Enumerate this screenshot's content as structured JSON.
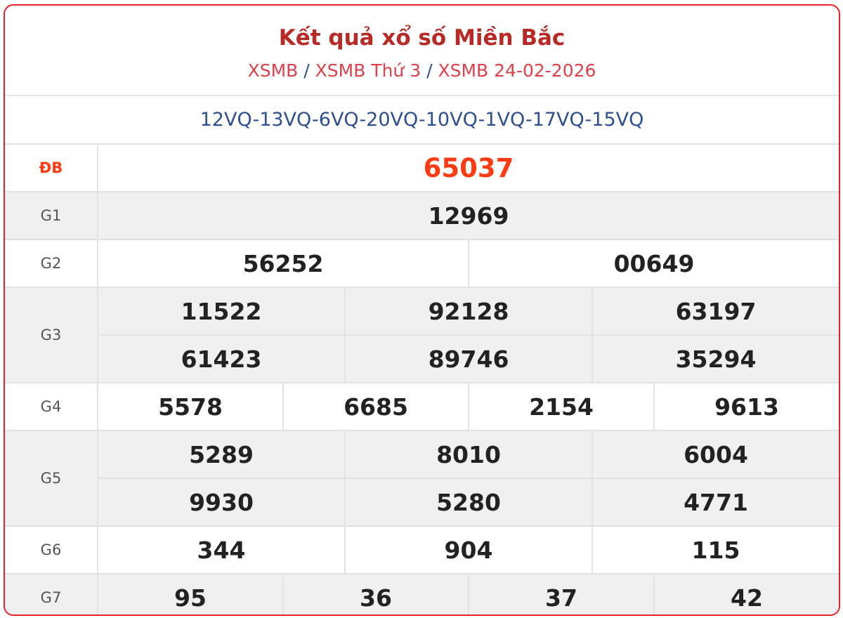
{
  "header": {
    "title": "Kết quả xổ số Miền Bắc",
    "breadcrumb": [
      "XSMB",
      "XSMB Thứ 3",
      "XSMB 24-02-2026"
    ],
    "separator": "/"
  },
  "codes": "12VQ-13VQ-6VQ-20VQ-10VQ-1VQ-17VQ-15VQ",
  "colors": {
    "border": "#e8202a",
    "title": "#b82a25",
    "special": "#ff3b14",
    "codes": "#2d4f8f"
  },
  "prizes": [
    {
      "label": "ĐB",
      "rows": [
        [
          "65037"
        ]
      ]
    },
    {
      "label": "G1",
      "rows": [
        [
          "12969"
        ]
      ]
    },
    {
      "label": "G2",
      "rows": [
        [
          "56252",
          "00649"
        ]
      ]
    },
    {
      "label": "G3",
      "rows": [
        [
          "11522",
          "92128",
          "63197"
        ],
        [
          "61423",
          "89746",
          "35294"
        ]
      ]
    },
    {
      "label": "G4",
      "rows": [
        [
          "5578",
          "6685",
          "2154",
          "9613"
        ]
      ]
    },
    {
      "label": "G5",
      "rows": [
        [
          "5289",
          "8010",
          "6004"
        ],
        [
          "9930",
          "5280",
          "4771"
        ]
      ]
    },
    {
      "label": "G6",
      "rows": [
        [
          "344",
          "904",
          "115"
        ]
      ]
    },
    {
      "label": "G7",
      "rows": [
        [
          "95",
          "36",
          "37",
          "42"
        ]
      ]
    }
  ]
}
